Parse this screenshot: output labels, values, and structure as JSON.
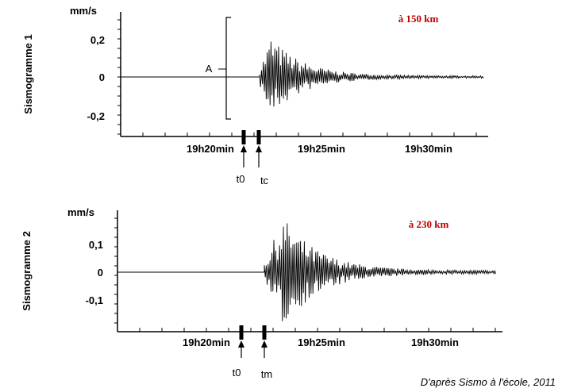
{
  "seismograms": [
    {
      "name": "Sismogramme 1",
      "unit": "mm/s",
      "yticks": [
        "0,2",
        "0",
        "-0,2"
      ],
      "xticks": [
        "19h20min",
        "19h25min",
        "19h30min"
      ],
      "distance": "à 150 km",
      "amplitude_label": "A",
      "markers": [
        "t0",
        "tc"
      ]
    },
    {
      "name": "Sismogramme 2",
      "unit": "mm/s",
      "yticks": [
        "0,1",
        "0",
        "-0,1"
      ],
      "xticks": [
        "19h20min",
        "19h25min",
        "19h30min"
      ],
      "distance": "à 230 km",
      "markers": [
        "t0",
        "tm"
      ]
    }
  ],
  "source": "D'après Sismo à l'école, 2011"
}
